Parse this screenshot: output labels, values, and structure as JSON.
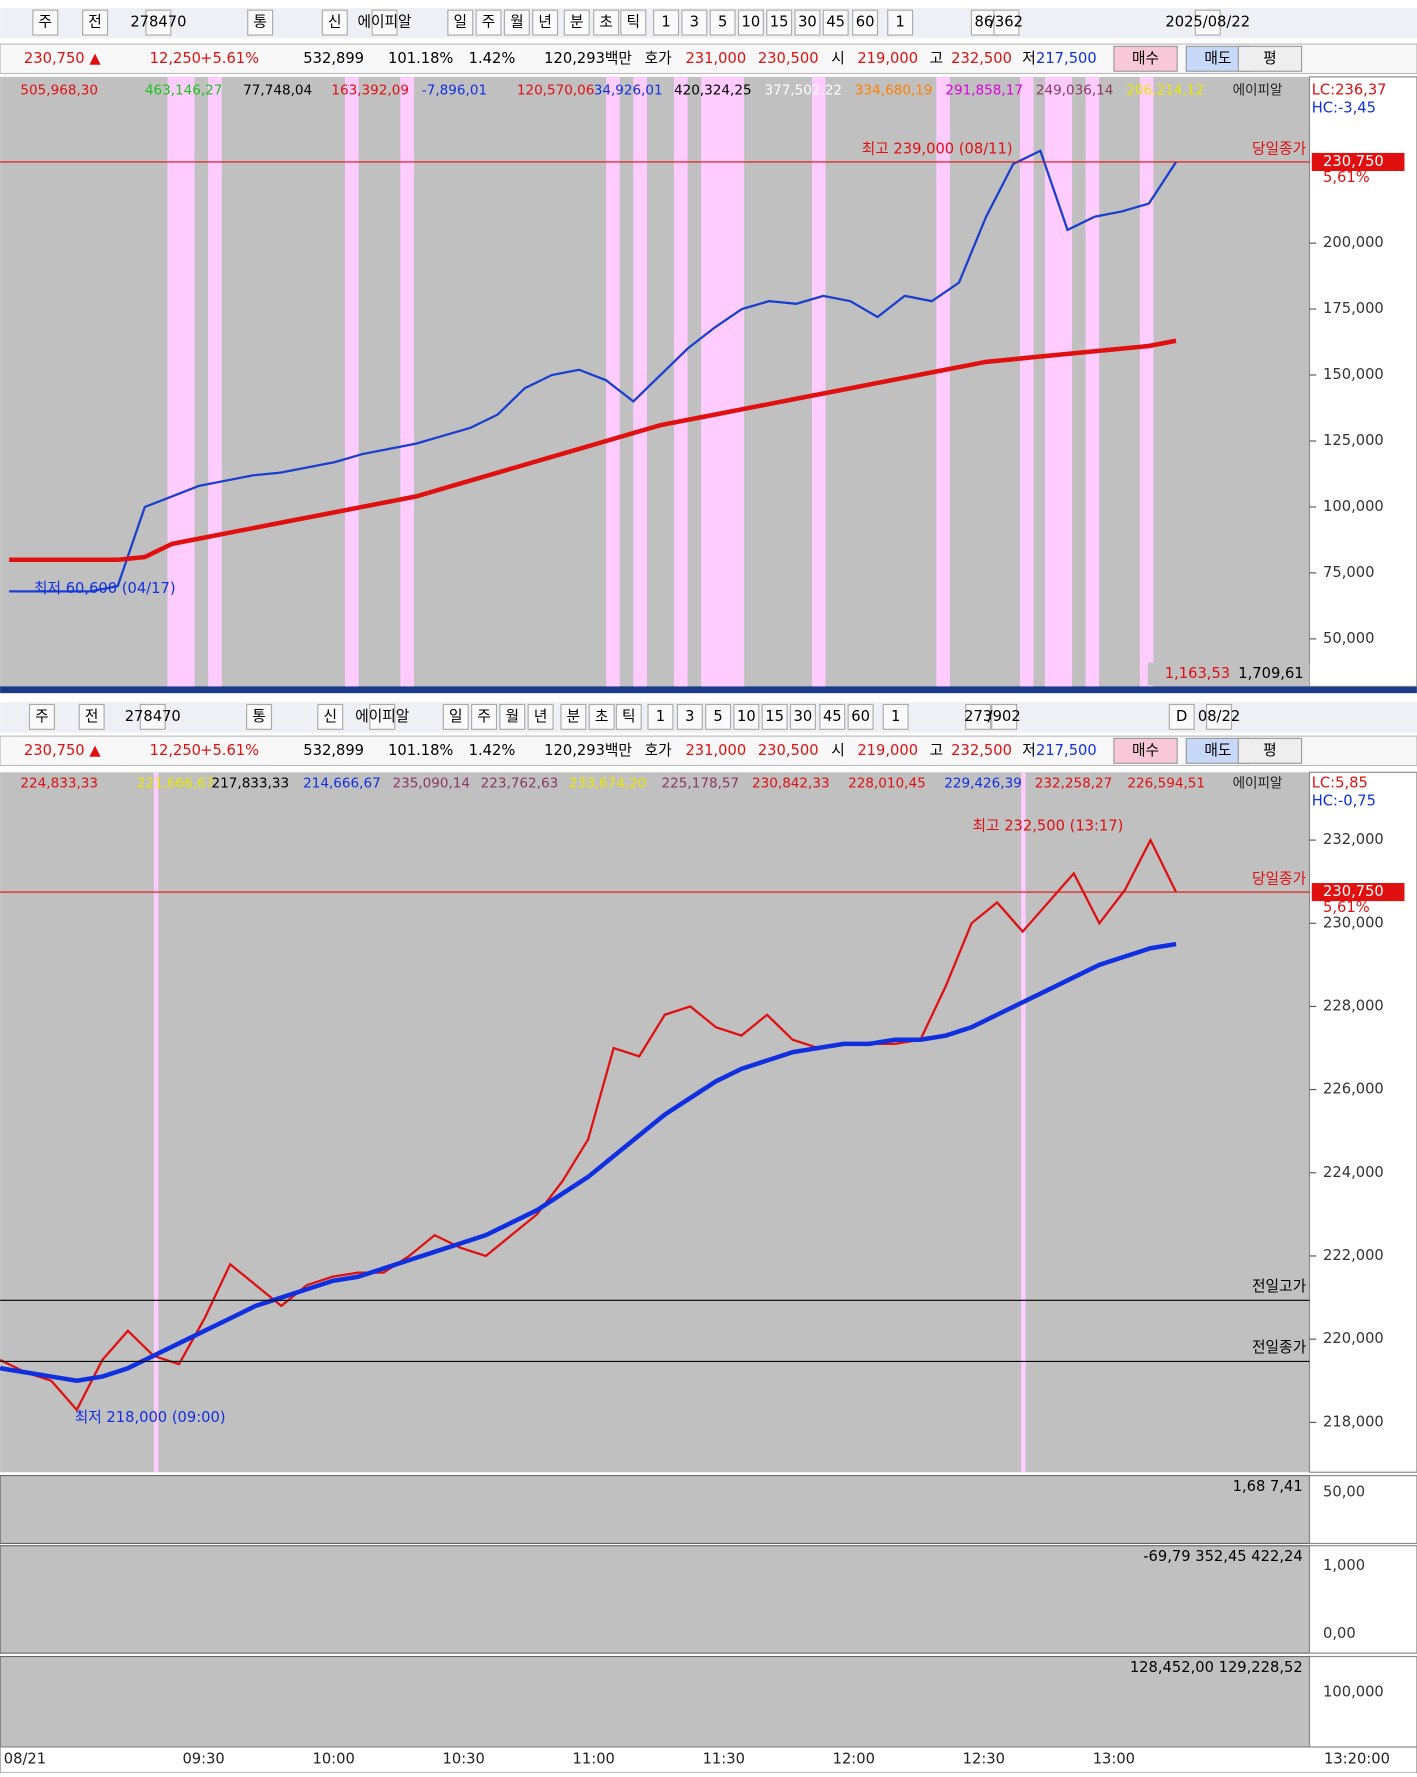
{
  "panels": [
    {
      "toolbar": [
        "주",
        "전",
        "278470",
        "통",
        "신",
        "에이피알",
        "일",
        "주",
        "월",
        "년",
        "분",
        "초",
        "틱",
        "1",
        "3",
        "5",
        "10",
        "15",
        "30",
        "45",
        "60",
        "1",
        "86",
        "/362",
        "2025/08/22"
      ],
      "info": [
        "230,750 ▲",
        "12,250",
        "+5.61%",
        "532,899",
        "101.18%",
        "1.42%",
        "120,293백만",
        "호가",
        "231,000",
        "230,500",
        "시",
        "219,000",
        "고",
        "232,500",
        "저",
        "217,500",
        "매수",
        "매도",
        "평"
      ],
      "legend": [
        "505,968,30",
        "463,146,27",
        "77,748,04",
        "163,392,09",
        "-7,896,01",
        "120,570,06",
        "34,926,01",
        "420,324,25",
        "377,502,22",
        "334,680,19",
        "291,858,17",
        "249,036,14",
        "206,214,12",
        "에이피알"
      ],
      "lc": "LC:236,37",
      "hc": "HC:-3,45",
      "annotations": {
        "high": "최고 239,000 (08/11)",
        "low": "최저 60,600 (04/17)",
        "close_label": "당일종가",
        "close_price": "230,750",
        "close_pct": "5,61%"
      },
      "footer": [
        "1,163,53",
        "1,709,61"
      ],
      "chart": {
        "type": "line",
        "ylim": [
          32000,
          263000
        ],
        "yticks": [
          {
            "value": 200000,
            "label": "200,000"
          },
          {
            "value": 175000,
            "label": "175,000"
          },
          {
            "value": 150000,
            "label": "150,000"
          },
          {
            "value": 125000,
            "label": "125,000"
          },
          {
            "value": 100000,
            "label": "100,000"
          },
          {
            "value": 75000,
            "label": "75,000"
          },
          {
            "value": 50000,
            "label": "50,000"
          }
        ],
        "series": [
          {
            "color": "#1a3fd0",
            "values": [
              68000,
              68000,
              68000,
              68000,
              70000,
              100000,
              104000,
              108000,
              110000,
              112000,
              113000,
              115000,
              117000,
              120000,
              122000,
              124000,
              127000,
              130000,
              135000,
              145000,
              150000,
              152000,
              148000,
              140000,
              150000,
              160000,
              168000,
              175000,
              178000,
              177000,
              180000,
              178000,
              172000,
              180000,
              178000,
              185000,
              210000,
              230000,
              235000,
              205000,
              210000,
              212000,
              215000,
              230750
            ]
          },
          {
            "color": "#e01010",
            "values": [
              80000,
              80000,
              80000,
              80000,
              80000,
              81000,
              86000,
              88000,
              90000,
              92000,
              94000,
              96000,
              98000,
              100000,
              102000,
              104000,
              107000,
              110000,
              113000,
              116000,
              119000,
              122000,
              125000,
              128000,
              131000,
              133000,
              135000,
              137000,
              139000,
              141000,
              143000,
              145000,
              147000,
              149000,
              151000,
              153000,
              155000,
              156000,
              157000,
              158000,
              159000,
              160000,
              161000,
              163000
            ]
          }
        ]
      }
    },
    {
      "toolbar": [
        "주",
        "전",
        "278470",
        "통",
        "신",
        "에이피알",
        "일",
        "주",
        "월",
        "년",
        "분",
        "초",
        "틱",
        "1",
        "3",
        "5",
        "10",
        "15",
        "30",
        "45",
        "60",
        "1",
        "273",
        "/902",
        "D",
        "08/22"
      ],
      "info": [
        "230,750 ▲",
        "12,250",
        "+5.61%",
        "532,899",
        "101.18%",
        "1.42%",
        "120,293백만",
        "호가",
        "231,000",
        "230,500",
        "시",
        "219,000",
        "고",
        "232,500",
        "저",
        "217,500",
        "매수",
        "매도",
        "평"
      ],
      "legend": [
        "224,833,33",
        "221,666,67",
        "217,833,33",
        "214,666,67",
        "235,090,14",
        "223,762,63",
        "233,674,20",
        "225,178,57",
        "230,842,33",
        "228,010,45",
        "229,426,39",
        "232,258,27",
        "226,594,51",
        "에이피알"
      ],
      "lc": "LC:5,85",
      "hc": "HC:-0,75",
      "annotations": {
        "high": "최고 232,500 (13:17)",
        "low": "최저 218,000 (09:00)",
        "close_label": "당일종가",
        "close_price": "230,750",
        "close_pct": "5,61%",
        "prev_high": "전일고가",
        "prev_close": "전일종가"
      },
      "subpanels": [
        {
          "legend": "1,68 7,41",
          "ticks": [
            "50,00"
          ]
        },
        {
          "legend": "-69,79 352,45 422,24",
          "ticks": [
            "1,000",
            "0,00"
          ]
        },
        {
          "legend": "128,452,00 129,228,52",
          "ticks": [
            "100,000"
          ]
        }
      ],
      "xlabels": [
        "08/21",
        "09:30",
        "10:00",
        "10:30",
        "11:00",
        "11:30",
        "12:00",
        "12:30",
        "13:00",
        "13:20:00"
      ],
      "chart": {
        "type": "line",
        "ylim": [
          216800,
          233630
        ],
        "yticks": [
          {
            "value": 232000,
            "label": "232,000"
          },
          {
            "value": 230000,
            "label": "230,000"
          },
          {
            "value": 228000,
            "label": "228,000"
          },
          {
            "value": 226000,
            "label": "226,000"
          },
          {
            "value": 224000,
            "label": "224,000"
          },
          {
            "value": 222000,
            "label": "222,000"
          },
          {
            "value": 220000,
            "label": "220,000"
          },
          {
            "value": 218000,
            "label": "218,000"
          }
        ],
        "series": [
          {
            "color": "#e01010",
            "values": [
              219500,
              219200,
              219000,
              218300,
              219500,
              220200,
              219600,
              219400,
              220500,
              221800,
              221300,
              220800,
              221300,
              221500,
              221600,
              221600,
              222000,
              222500,
              222200,
              222000,
              222500,
              223000,
              223800,
              224800,
              227000,
              226800,
              227800,
              228000,
              227500,
              227300,
              227800,
              227200,
              227000,
              227100,
              227100,
              227100,
              227200,
              228500,
              230000,
              230500,
              229800,
              230500,
              231200,
              230000,
              230800,
              232000,
              230750
            ]
          },
          {
            "color": "#1030e0",
            "values": [
              219300,
              219200,
              219100,
              219000,
              219100,
              219300,
              219600,
              219900,
              220200,
              220500,
              220800,
              221000,
              221200,
              221400,
              221500,
              221700,
              221900,
              222100,
              222300,
              222500,
              222800,
              223100,
              223500,
              223900,
              224400,
              224900,
              225400,
              225800,
              226200,
              226500,
              226700,
              226900,
              227000,
              227100,
              227100,
              227200,
              227200,
              227300,
              227500,
              227800,
              228100,
              228400,
              228700,
              229000,
              229200,
              229400,
              229500
            ]
          }
        ]
      }
    }
  ]
}
